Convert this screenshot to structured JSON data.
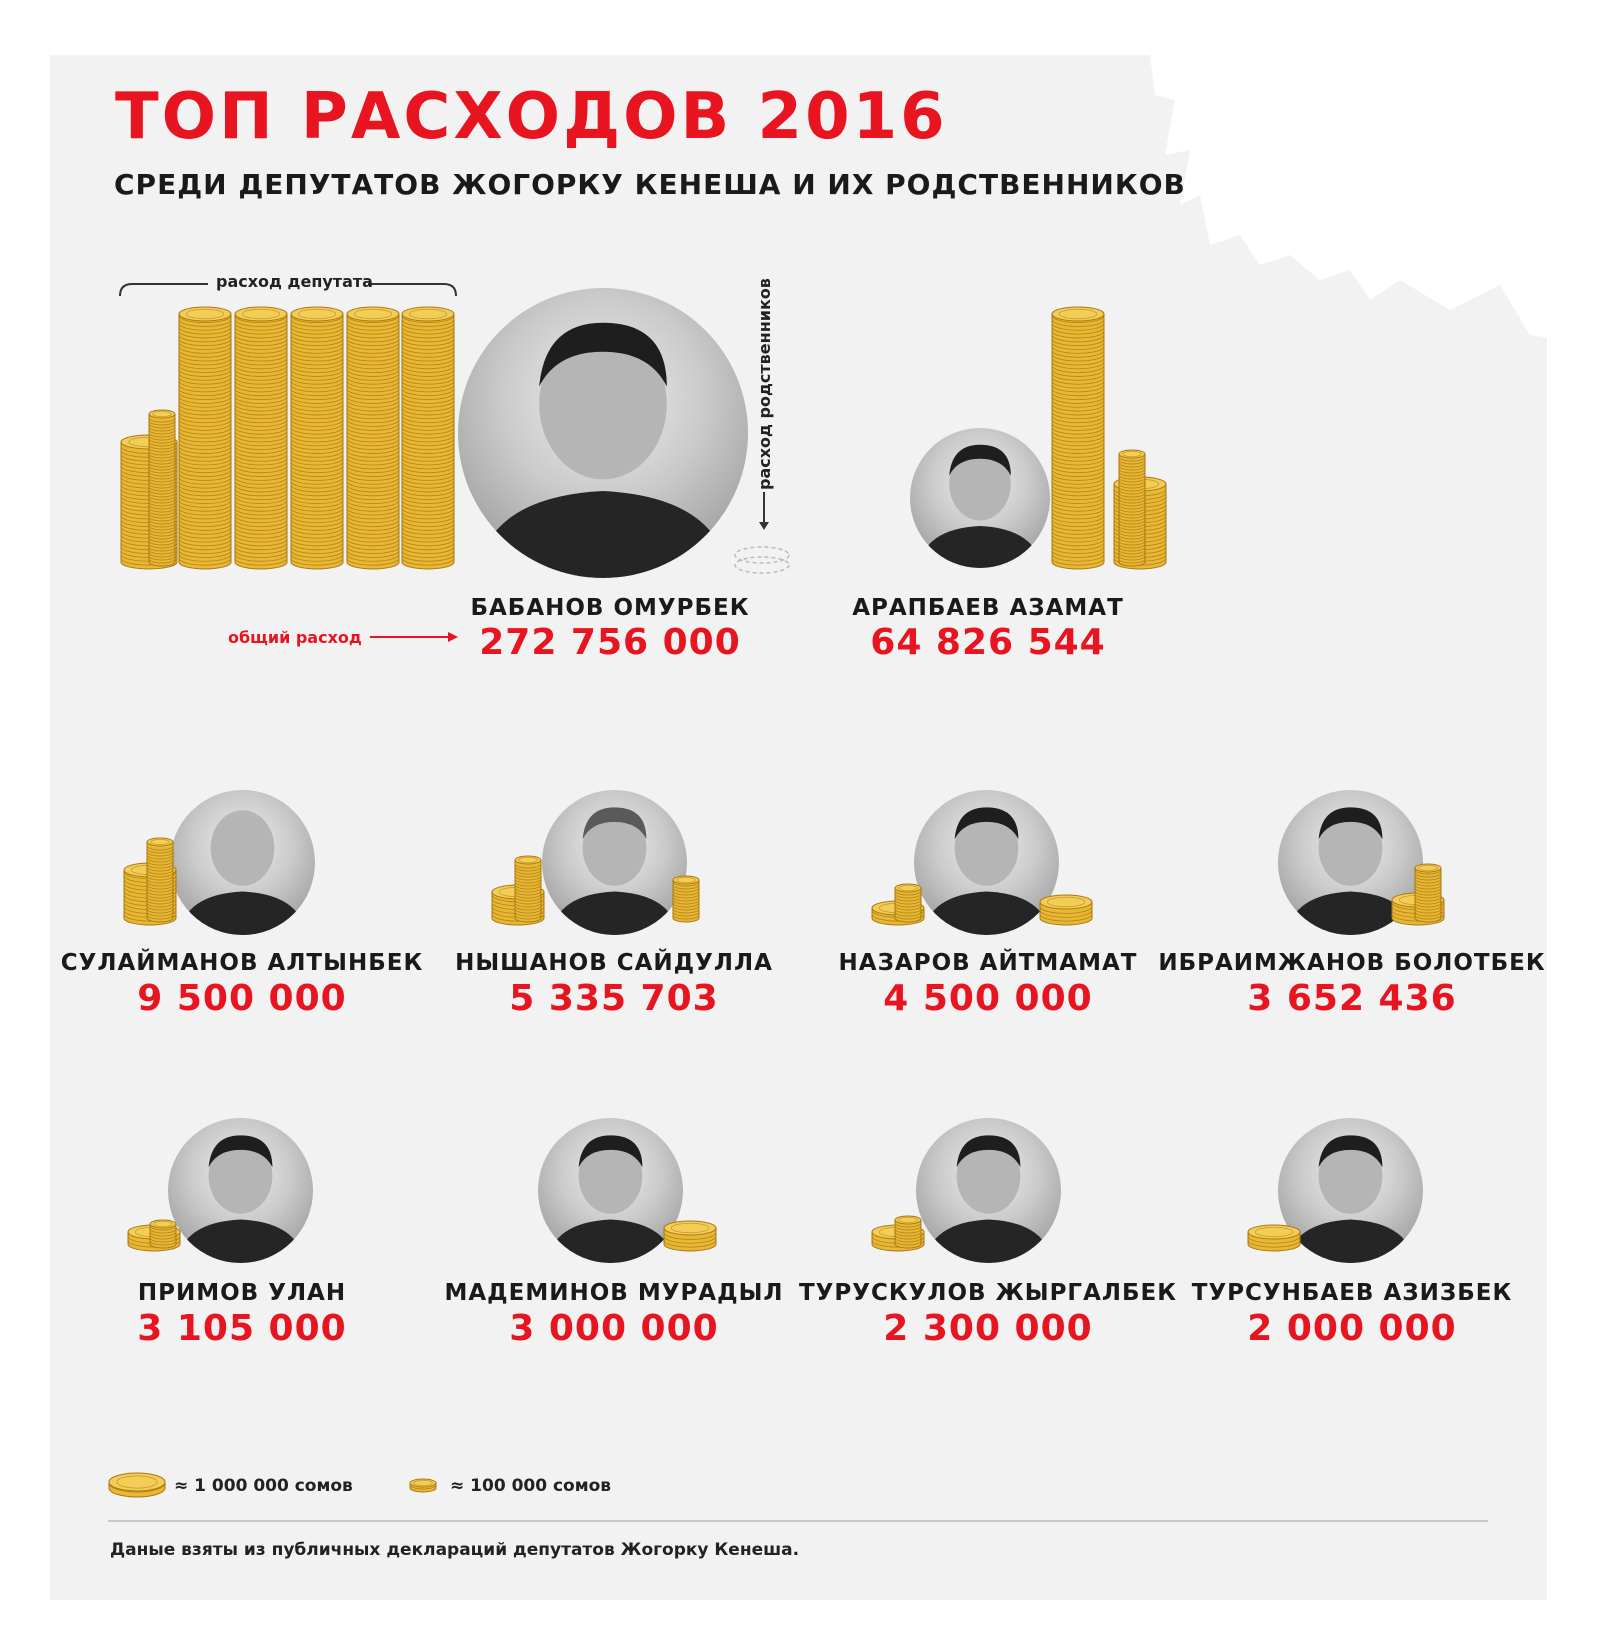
{
  "header": {
    "title": "ТОП РАСХОДОВ 2016",
    "subtitle": "СРЕДИ ДЕПУТАТОВ ЖОГОРКУ КЕНЕША И ИХ РОДСТВЕННИКОВ"
  },
  "annotations": {
    "deputy_expense": "расход депутата",
    "relatives_expense": "расход родственников",
    "total_expense": "общий расход"
  },
  "legend": {
    "big_coin": "≈ 1 000 000 сомов",
    "small_coin": "≈ 100 000 сомов"
  },
  "footer": {
    "source": "Даные взяты из публичных деклараций депутатов Жогорку Кенеша."
  },
  "colors": {
    "accent": "#e8141f",
    "coin": "#e8b734",
    "coin_dark": "#a87812",
    "background": "#f2f2f2"
  },
  "deputies": [
    {
      "name": "БАБАНОВ ОМУРБЕК",
      "amount": "272 756 000"
    },
    {
      "name": "АРАПБАЕВ АЗАМАТ",
      "amount": "64 826 544"
    },
    {
      "name": "СУЛАЙМАНОВ АЛТЫНБЕК",
      "amount": "9 500 000"
    },
    {
      "name": "НЫШАНОВ САЙДУЛЛА",
      "amount": "5 335 703"
    },
    {
      "name": "НАЗАРОВ АЙТМАМАТ",
      "amount": "4 500 000"
    },
    {
      "name": "ИБРАИМЖАНОВ БОЛОТБЕК",
      "amount": "3 652 436"
    },
    {
      "name": "ПРИМОВ УЛАН",
      "amount": "3 105 000"
    },
    {
      "name": "МАДЕМИНОВ МУРАДЫЛ",
      "amount": "3 000 000"
    },
    {
      "name": "ТУРУСКУЛОВ ЖЫРГАЛБЕК",
      "amount": "2 300 000"
    },
    {
      "name": "ТУРСУНБАЕВ АЗИЗБЕК",
      "amount": "2 000 000"
    }
  ],
  "chart_data": {
    "type": "bar",
    "title": "ТОП РАСХОДОВ 2016",
    "subtitle": "СРЕДИ ДЕПУТАТОВ ЖОГОРКУ КЕНЕША И ИХ РОДСТВЕННИКОВ",
    "unit": "сомов",
    "categories": [
      "БАБАНОВ ОМУРБЕК",
      "АРАПБАЕВ АЗАМАТ",
      "СУЛАЙМАНОВ АЛТЫНБЕК",
      "НЫШАНОВ САЙДУЛЛА",
      "НАЗАРОВ АЙТМАМАТ",
      "ИБРАИМЖАНОВ БОЛОТБЕК",
      "ПРИМОВ УЛАН",
      "МАДЕМИНОВ МУРАДЫЛ",
      "ТУРУСКУЛОВ ЖЫРГАЛБЕК",
      "ТУРСУНБАЕВ АЗИЗБЕК"
    ],
    "values": [
      272756000,
      64826544,
      9500000,
      5335703,
      4500000,
      3652436,
      3105000,
      3000000,
      2300000,
      2000000
    ],
    "legend": [
      "≈ 1 000 000 сомов",
      "≈ 100 000 сомов"
    ]
  }
}
